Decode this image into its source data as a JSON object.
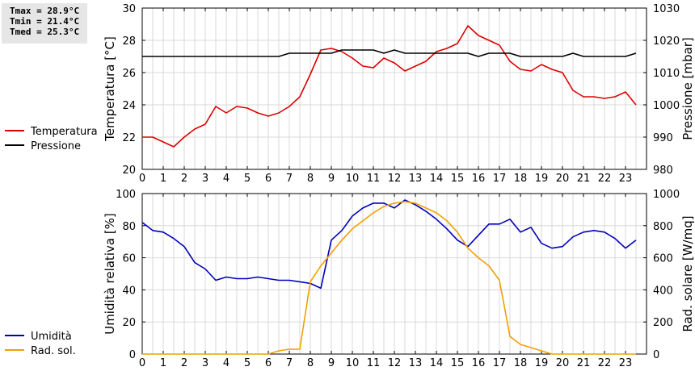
{
  "stats": {
    "tmax": "Tmax = 28.9°C",
    "tmin": "Tmin = 21.4°C",
    "tmed": "Tmed = 25.3°C"
  },
  "colors": {
    "temperature": "#dd0000",
    "pressure": "#000000",
    "humidity": "#0000bb",
    "radiation": "#f0a000",
    "grid": "#d8d8d8",
    "stats_bg": "#e6e6e6"
  },
  "chart_data": [
    {
      "type": "line",
      "xlim": [
        0,
        24
      ],
      "x_ticks": [
        0,
        1,
        2,
        3,
        4,
        5,
        6,
        7,
        8,
        9,
        10,
        11,
        12,
        13,
        14,
        15,
        16,
        17,
        18,
        19,
        20,
        21,
        22,
        23
      ],
      "ylabel": "Temperatura [°C]",
      "ylim": [
        20,
        30
      ],
      "y_ticks": [
        20,
        22,
        24,
        26,
        28,
        30
      ],
      "y2label": "Pressione [mbar]",
      "y2lim": [
        980,
        1030
      ],
      "y2_ticks": [
        980,
        990,
        1000,
        1010,
        1020,
        1030
      ],
      "grid": true,
      "legend_position": "left",
      "series": [
        {
          "name": "Temperatura",
          "axis": "left",
          "x": [
            0,
            0.5,
            1,
            1.5,
            2,
            2.5,
            3,
            3.5,
            4,
            4.5,
            5,
            5.5,
            6,
            6.5,
            7,
            7.5,
            8,
            8.5,
            9,
            9.5,
            10,
            10.5,
            11,
            11.5,
            12,
            12.5,
            13,
            13.5,
            14,
            14.5,
            15,
            15.5,
            16,
            16.5,
            17,
            17.5,
            18,
            18.5,
            19,
            19.5,
            20,
            20.5,
            21,
            21.5,
            22,
            22.5,
            23,
            23.5
          ],
          "values": [
            22.0,
            22.0,
            21.7,
            21.4,
            22.0,
            22.5,
            22.8,
            23.9,
            23.5,
            23.9,
            23.8,
            23.5,
            23.3,
            23.5,
            23.9,
            24.5,
            25.9,
            27.4,
            27.5,
            27.3,
            26.9,
            26.4,
            26.3,
            26.9,
            26.6,
            26.1,
            26.4,
            26.7,
            27.3,
            27.5,
            27.8,
            28.9,
            28.3,
            28.0,
            27.7,
            26.7,
            26.2,
            26.1,
            26.5,
            26.2,
            26.0,
            24.9,
            24.5,
            24.5,
            24.4,
            24.5,
            24.8,
            24.0
          ]
        },
        {
          "name": "Pressione",
          "axis": "right",
          "x": [
            0,
            0.5,
            1,
            1.5,
            2,
            2.5,
            3,
            3.5,
            4,
            4.5,
            5,
            5.5,
            6,
            6.5,
            7,
            7.5,
            8,
            8.5,
            9,
            9.5,
            10,
            10.5,
            11,
            11.5,
            12,
            12.5,
            13,
            13.5,
            14,
            14.5,
            15,
            15.5,
            16,
            16.5,
            17,
            17.5,
            18,
            18.5,
            19,
            19.5,
            20,
            20.5,
            21,
            21.5,
            22,
            22.5,
            23,
            23.5
          ],
          "values": [
            1015,
            1015,
            1015,
            1015,
            1015,
            1015,
            1015,
            1015,
            1015,
            1015,
            1015,
            1015,
            1015,
            1015,
            1016,
            1016,
            1016,
            1016,
            1016,
            1017,
            1017,
            1017,
            1017,
            1016,
            1017,
            1016,
            1016,
            1016,
            1016,
            1016,
            1016,
            1016,
            1015,
            1016,
            1016,
            1016,
            1015,
            1015,
            1015,
            1015,
            1015,
            1016,
            1015,
            1015,
            1015,
            1015,
            1015,
            1016
          ]
        }
      ]
    },
    {
      "type": "line",
      "xlim": [
        0,
        24
      ],
      "x_ticks": [
        0,
        1,
        2,
        3,
        4,
        5,
        6,
        7,
        8,
        9,
        10,
        11,
        12,
        13,
        14,
        15,
        16,
        17,
        18,
        19,
        20,
        21,
        22,
        23
      ],
      "ylabel": "Umidità relativa [%]",
      "ylim": [
        0,
        100
      ],
      "y_ticks": [
        0,
        20,
        40,
        60,
        80,
        100
      ],
      "y2label": "Rad. solare [W/mq]",
      "y2lim": [
        0,
        1000
      ],
      "y2_ticks": [
        0,
        200,
        400,
        600,
        800,
        1000
      ],
      "grid": true,
      "legend_position": "left",
      "series": [
        {
          "name": "Umidità",
          "axis": "left",
          "x": [
            0,
            0.5,
            1,
            1.5,
            2,
            2.5,
            3,
            3.5,
            4,
            4.5,
            5,
            5.5,
            6,
            6.5,
            7,
            7.5,
            8,
            8.5,
            9,
            9.5,
            10,
            10.5,
            11,
            11.5,
            12,
            12.5,
            13,
            13.5,
            14,
            14.5,
            15,
            15.5,
            16,
            16.5,
            17,
            17.5,
            18,
            18.5,
            19,
            19.5,
            20,
            20.5,
            21,
            21.5,
            22,
            22.5,
            23,
            23.5
          ],
          "values": [
            82,
            77,
            76,
            72,
            67,
            57,
            53,
            46,
            48,
            47,
            47,
            48,
            47,
            46,
            46,
            45,
            44,
            41,
            71,
            77,
            86,
            91,
            94,
            94,
            91,
            96,
            93,
            89,
            84,
            78,
            71,
            67,
            74,
            81,
            81,
            84,
            76,
            79,
            69,
            66,
            67,
            73,
            76,
            77,
            76,
            72,
            66,
            71
          ]
        },
        {
          "name": "Rad. sol.",
          "axis": "right",
          "x": [
            0,
            0.5,
            1,
            1.5,
            2,
            2.5,
            3,
            3.5,
            4,
            4.5,
            5,
            5.5,
            6,
            6.5,
            7,
            7.5,
            8,
            8.5,
            9,
            9.5,
            10,
            10.5,
            11,
            11.5,
            12,
            12.5,
            13,
            13.5,
            14,
            14.5,
            15,
            15.5,
            16,
            16.5,
            17,
            17.5,
            18,
            18.5,
            19,
            19.5,
            20,
            20.5,
            21,
            21.5,
            22,
            22.5,
            23,
            23.5
          ],
          "values": [
            0,
            0,
            0,
            0,
            0,
            0,
            0,
            0,
            0,
            0,
            0,
            0,
            0,
            20,
            30,
            30,
            450,
            550,
            630,
            710,
            780,
            830,
            880,
            920,
            940,
            950,
            940,
            910,
            880,
            830,
            760,
            660,
            600,
            550,
            460,
            110,
            60,
            40,
            20,
            0,
            0,
            0,
            0,
            0,
            0,
            0,
            0,
            0
          ]
        }
      ]
    }
  ]
}
